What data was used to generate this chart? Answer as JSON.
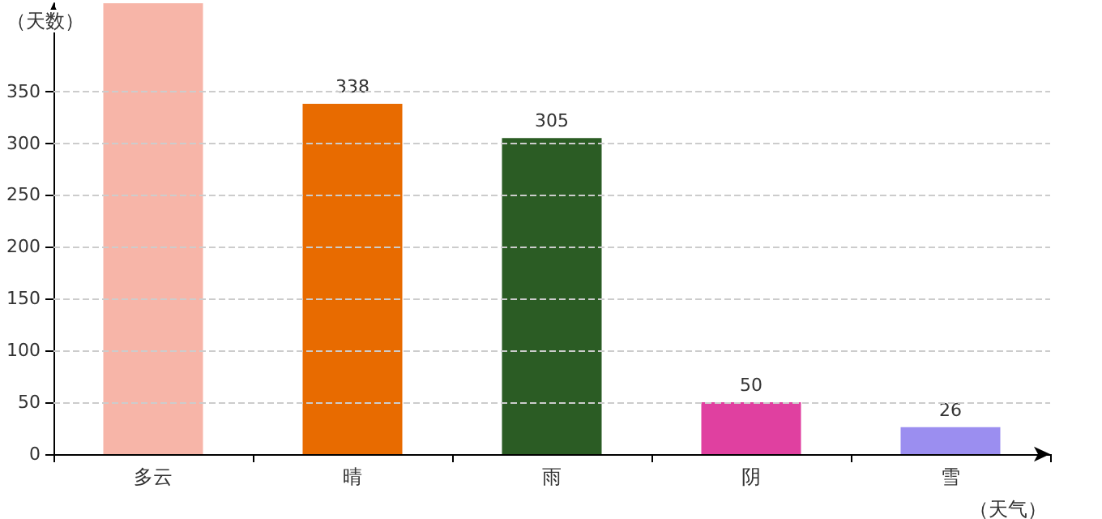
{
  "chart_data": {
    "type": "bar",
    "xlabel": "（天气）",
    "ylabel": "（天数）",
    "categories": [
      "多云",
      "晴",
      "雨",
      "阴",
      "雪"
    ],
    "values": [
      435,
      338,
      305,
      50,
      26
    ],
    "colors": [
      "#f7b5a8",
      "#e86b00",
      "#2b5c24",
      "#e040a0",
      "#9b8ef0"
    ],
    "value_labels": [
      null,
      "338",
      "305",
      "50",
      "26"
    ],
    "ylim": [
      0,
      435
    ],
    "yticks": [
      0,
      50,
      100,
      150,
      200,
      250,
      300,
      350
    ],
    "grid": "y"
  }
}
